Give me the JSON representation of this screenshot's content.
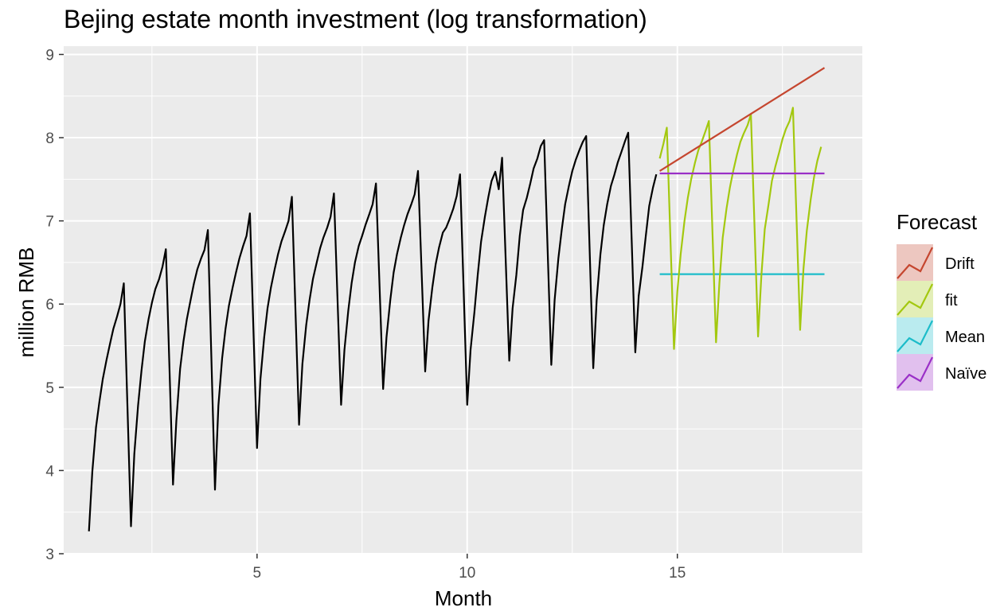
{
  "chart_data": {
    "type": "line",
    "title": "Bejing estate month investment (log transformation)",
    "xlabel": "Month",
    "ylabel": "million RMB",
    "xlim": [
      0.4,
      19.4
    ],
    "ylim": [
      3,
      9.1
    ],
    "x_ticks": [
      5,
      10,
      15
    ],
    "x_tick_labels": [
      "5",
      "10",
      "15"
    ],
    "y_ticks": [
      3,
      4,
      5,
      6,
      7,
      8,
      9
    ],
    "y_tick_labels": [
      "3",
      "4",
      "5",
      "6",
      "7",
      "8",
      "9"
    ],
    "grid": true,
    "legend": {
      "title": "Forecast",
      "placement": "right",
      "entries": [
        "Drift",
        "fit",
        "Mean",
        "Naïve"
      ]
    },
    "observed": {
      "color": "#000000",
      "points": [
        [
          1.0,
          3.27
        ],
        [
          1.08,
          3.98
        ],
        [
          1.17,
          4.52
        ],
        [
          1.25,
          4.83
        ],
        [
          1.33,
          5.1
        ],
        [
          1.42,
          5.33
        ],
        [
          1.5,
          5.52
        ],
        [
          1.58,
          5.7
        ],
        [
          1.67,
          5.85
        ],
        [
          1.75,
          6.0
        ],
        [
          1.83,
          6.25
        ],
        [
          2.0,
          3.33
        ],
        [
          2.08,
          4.2
        ],
        [
          2.17,
          4.78
        ],
        [
          2.25,
          5.2
        ],
        [
          2.33,
          5.55
        ],
        [
          2.42,
          5.82
        ],
        [
          2.5,
          6.02
        ],
        [
          2.58,
          6.18
        ],
        [
          2.67,
          6.3
        ],
        [
          2.75,
          6.45
        ],
        [
          2.83,
          6.66
        ],
        [
          3.0,
          3.83
        ],
        [
          3.08,
          4.6
        ],
        [
          3.17,
          5.22
        ],
        [
          3.25,
          5.55
        ],
        [
          3.33,
          5.82
        ],
        [
          3.42,
          6.05
        ],
        [
          3.5,
          6.25
        ],
        [
          3.58,
          6.42
        ],
        [
          3.67,
          6.55
        ],
        [
          3.75,
          6.65
        ],
        [
          3.83,
          6.89
        ],
        [
          4.0,
          3.77
        ],
        [
          4.08,
          4.78
        ],
        [
          4.17,
          5.35
        ],
        [
          4.25,
          5.7
        ],
        [
          4.33,
          5.98
        ],
        [
          4.42,
          6.2
        ],
        [
          4.5,
          6.38
        ],
        [
          4.58,
          6.55
        ],
        [
          4.67,
          6.7
        ],
        [
          4.75,
          6.82
        ],
        [
          4.83,
          7.09
        ],
        [
          5.0,
          4.27
        ],
        [
          5.08,
          5.1
        ],
        [
          5.17,
          5.6
        ],
        [
          5.25,
          5.95
        ],
        [
          5.33,
          6.2
        ],
        [
          5.42,
          6.42
        ],
        [
          5.5,
          6.6
        ],
        [
          5.58,
          6.75
        ],
        [
          5.67,
          6.88
        ],
        [
          5.75,
          7.0
        ],
        [
          5.83,
          7.29
        ],
        [
          6.0,
          4.55
        ],
        [
          6.08,
          5.28
        ],
        [
          6.17,
          5.75
        ],
        [
          6.25,
          6.05
        ],
        [
          6.33,
          6.3
        ],
        [
          6.42,
          6.5
        ],
        [
          6.5,
          6.67
        ],
        [
          6.58,
          6.8
        ],
        [
          6.67,
          6.92
        ],
        [
          6.75,
          7.05
        ],
        [
          6.83,
          7.33
        ],
        [
          7.0,
          4.79
        ],
        [
          7.08,
          5.45
        ],
        [
          7.17,
          5.92
        ],
        [
          7.25,
          6.25
        ],
        [
          7.33,
          6.5
        ],
        [
          7.42,
          6.7
        ],
        [
          7.5,
          6.82
        ],
        [
          7.58,
          6.95
        ],
        [
          7.67,
          7.08
        ],
        [
          7.75,
          7.2
        ],
        [
          7.83,
          7.45
        ],
        [
          8.0,
          4.98
        ],
        [
          8.08,
          5.6
        ],
        [
          8.17,
          6.05
        ],
        [
          8.25,
          6.38
        ],
        [
          8.33,
          6.6
        ],
        [
          8.42,
          6.8
        ],
        [
          8.5,
          6.95
        ],
        [
          8.58,
          7.08
        ],
        [
          8.67,
          7.2
        ],
        [
          8.75,
          7.32
        ],
        [
          8.83,
          7.6
        ],
        [
          9.0,
          5.19
        ],
        [
          9.08,
          5.8
        ],
        [
          9.17,
          6.2
        ],
        [
          9.25,
          6.48
        ],
        [
          9.33,
          6.68
        ],
        [
          9.42,
          6.86
        ],
        [
          9.5,
          6.92
        ],
        [
          9.58,
          7.02
        ],
        [
          9.67,
          7.15
        ],
        [
          9.75,
          7.3
        ],
        [
          9.83,
          7.56
        ],
        [
          10.0,
          4.79
        ],
        [
          10.08,
          5.45
        ],
        [
          10.17,
          5.9
        ],
        [
          10.25,
          6.35
        ],
        [
          10.33,
          6.75
        ],
        [
          10.42,
          7.05
        ],
        [
          10.5,
          7.28
        ],
        [
          10.58,
          7.48
        ],
        [
          10.67,
          7.59
        ],
        [
          10.75,
          7.38
        ],
        [
          10.83,
          7.76
        ],
        [
          11.0,
          5.32
        ],
        [
          11.08,
          5.95
        ],
        [
          11.17,
          6.35
        ],
        [
          11.25,
          6.82
        ],
        [
          11.33,
          7.13
        ],
        [
          11.42,
          7.28
        ],
        [
          11.5,
          7.45
        ],
        [
          11.58,
          7.63
        ],
        [
          11.67,
          7.75
        ],
        [
          11.75,
          7.9
        ],
        [
          11.83,
          7.97
        ],
        [
          12.0,
          5.27
        ],
        [
          12.08,
          6.05
        ],
        [
          12.17,
          6.55
        ],
        [
          12.25,
          6.9
        ],
        [
          12.33,
          7.2
        ],
        [
          12.42,
          7.42
        ],
        [
          12.5,
          7.6
        ],
        [
          12.58,
          7.73
        ],
        [
          12.67,
          7.85
        ],
        [
          12.75,
          7.95
        ],
        [
          12.83,
          8.02
        ],
        [
          13.0,
          5.23
        ],
        [
          13.08,
          6.05
        ],
        [
          13.17,
          6.6
        ],
        [
          13.25,
          6.95
        ],
        [
          13.33,
          7.2
        ],
        [
          13.42,
          7.42
        ],
        [
          13.5,
          7.55
        ],
        [
          13.58,
          7.7
        ],
        [
          13.67,
          7.83
        ],
        [
          13.75,
          7.95
        ],
        [
          13.83,
          8.06
        ],
        [
          14.0,
          5.42
        ],
        [
          14.08,
          6.1
        ],
        [
          14.17,
          6.45
        ],
        [
          14.25,
          6.82
        ],
        [
          14.33,
          7.18
        ],
        [
          14.42,
          7.4
        ],
        [
          14.5,
          7.56
        ]
      ]
    },
    "series": [
      {
        "name": "Drift",
        "color": "#c5462f",
        "points": [
          [
            14.58,
            7.6
          ],
          [
            18.5,
            8.84
          ]
        ]
      },
      {
        "name": "fit",
        "color": "#a3c80f",
        "points": [
          [
            14.58,
            7.75
          ],
          [
            14.67,
            7.93
          ],
          [
            14.75,
            8.12
          ],
          [
            14.92,
            5.46
          ],
          [
            15.0,
            6.15
          ],
          [
            15.08,
            6.6
          ],
          [
            15.17,
            7.0
          ],
          [
            15.25,
            7.28
          ],
          [
            15.33,
            7.5
          ],
          [
            15.42,
            7.7
          ],
          [
            15.5,
            7.85
          ],
          [
            15.58,
            7.95
          ],
          [
            15.67,
            8.08
          ],
          [
            15.75,
            8.2
          ],
          [
            15.92,
            5.54
          ],
          [
            16.0,
            6.25
          ],
          [
            16.08,
            6.8
          ],
          [
            16.17,
            7.15
          ],
          [
            16.25,
            7.4
          ],
          [
            16.33,
            7.6
          ],
          [
            16.42,
            7.8
          ],
          [
            16.5,
            7.95
          ],
          [
            16.58,
            8.05
          ],
          [
            16.67,
            8.15
          ],
          [
            16.75,
            8.28
          ],
          [
            16.92,
            5.61
          ],
          [
            17.0,
            6.35
          ],
          [
            17.08,
            6.9
          ],
          [
            17.17,
            7.2
          ],
          [
            17.25,
            7.48
          ],
          [
            17.33,
            7.65
          ],
          [
            17.42,
            7.82
          ],
          [
            17.5,
            7.98
          ],
          [
            17.58,
            8.1
          ],
          [
            17.67,
            8.2
          ],
          [
            17.75,
            8.36
          ],
          [
            17.92,
            5.69
          ],
          [
            18.0,
            6.42
          ],
          [
            18.08,
            6.88
          ],
          [
            18.17,
            7.25
          ],
          [
            18.25,
            7.52
          ],
          [
            18.33,
            7.72
          ],
          [
            18.42,
            7.89
          ]
        ]
      },
      {
        "name": "Mean",
        "color": "#1cbcc9",
        "points": [
          [
            14.58,
            6.36
          ],
          [
            18.5,
            6.36
          ]
        ]
      },
      {
        "name": "Naïve",
        "color": "#9a30c7",
        "points": [
          [
            14.58,
            7.57
          ],
          [
            18.5,
            7.57
          ]
        ]
      }
    ]
  },
  "colors": {
    "panel_background": "#ebebeb",
    "grid": "#ffffff",
    "legend_fill_alpha": 0.3
  }
}
